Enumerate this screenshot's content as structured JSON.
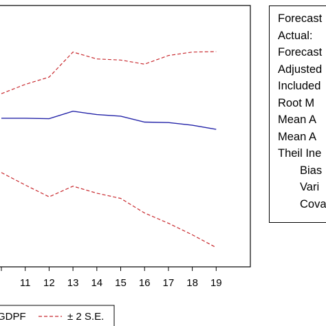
{
  "chart_data": {
    "type": "line",
    "x": [
      10,
      11,
      12,
      13,
      14,
      15,
      16,
      17,
      18,
      19
    ],
    "x_tick_labels": [
      "11",
      "12",
      "13",
      "14",
      "15",
      "16",
      "17",
      "18",
      "19"
    ],
    "series": [
      {
        "name": "GDPF",
        "color": "#2323a8",
        "style": "solid",
        "values": [
          0.04,
          0.04,
          0.02,
          0.35,
          0.2,
          0.13,
          -0.13,
          -0.15,
          -0.27,
          -0.45
        ]
      },
      {
        "name": "± 2 S.E.",
        "color": "#c8282d",
        "style": "dashed",
        "part": "upper",
        "values": [
          1.12,
          1.53,
          1.85,
          2.95,
          2.65,
          2.6,
          2.42,
          2.8,
          2.95,
          2.97
        ]
      },
      {
        "name": "± 2 S.E.",
        "color": "#c8282d",
        "style": "dashed",
        "part": "lower",
        "values": [
          -2.35,
          -2.9,
          -3.42,
          -2.95,
          -3.26,
          -3.49,
          -4.13,
          -4.58,
          -5.09,
          -5.65
        ]
      }
    ],
    "legend": [
      {
        "label": "GDPF",
        "color": "#2323a8",
        "style": "solid"
      },
      {
        "label": "± 2 S.E.",
        "color": "#c8282d",
        "style": "dashed"
      }
    ],
    "legend_position": "bottom",
    "ylim": [
      -6.5,
      5.0
    ],
    "grid": false
  },
  "stats": {
    "lines": [
      {
        "text": "Forecast",
        "indent": false
      },
      {
        "text": "Actual:",
        "indent": false
      },
      {
        "text": "Forecast",
        "indent": false
      },
      {
        "text": "Adjusted",
        "indent": false
      },
      {
        "text": "Included",
        "indent": false
      },
      {
        "text": "Root M",
        "indent": false
      },
      {
        "text": "Mean A",
        "indent": false
      },
      {
        "text": "Mean A",
        "indent": false
      },
      {
        "text": "Theil Ine",
        "indent": false
      },
      {
        "text": "Bias",
        "indent": true
      },
      {
        "text": "Vari",
        "indent": true
      },
      {
        "text": "Cova",
        "indent": true
      }
    ]
  }
}
